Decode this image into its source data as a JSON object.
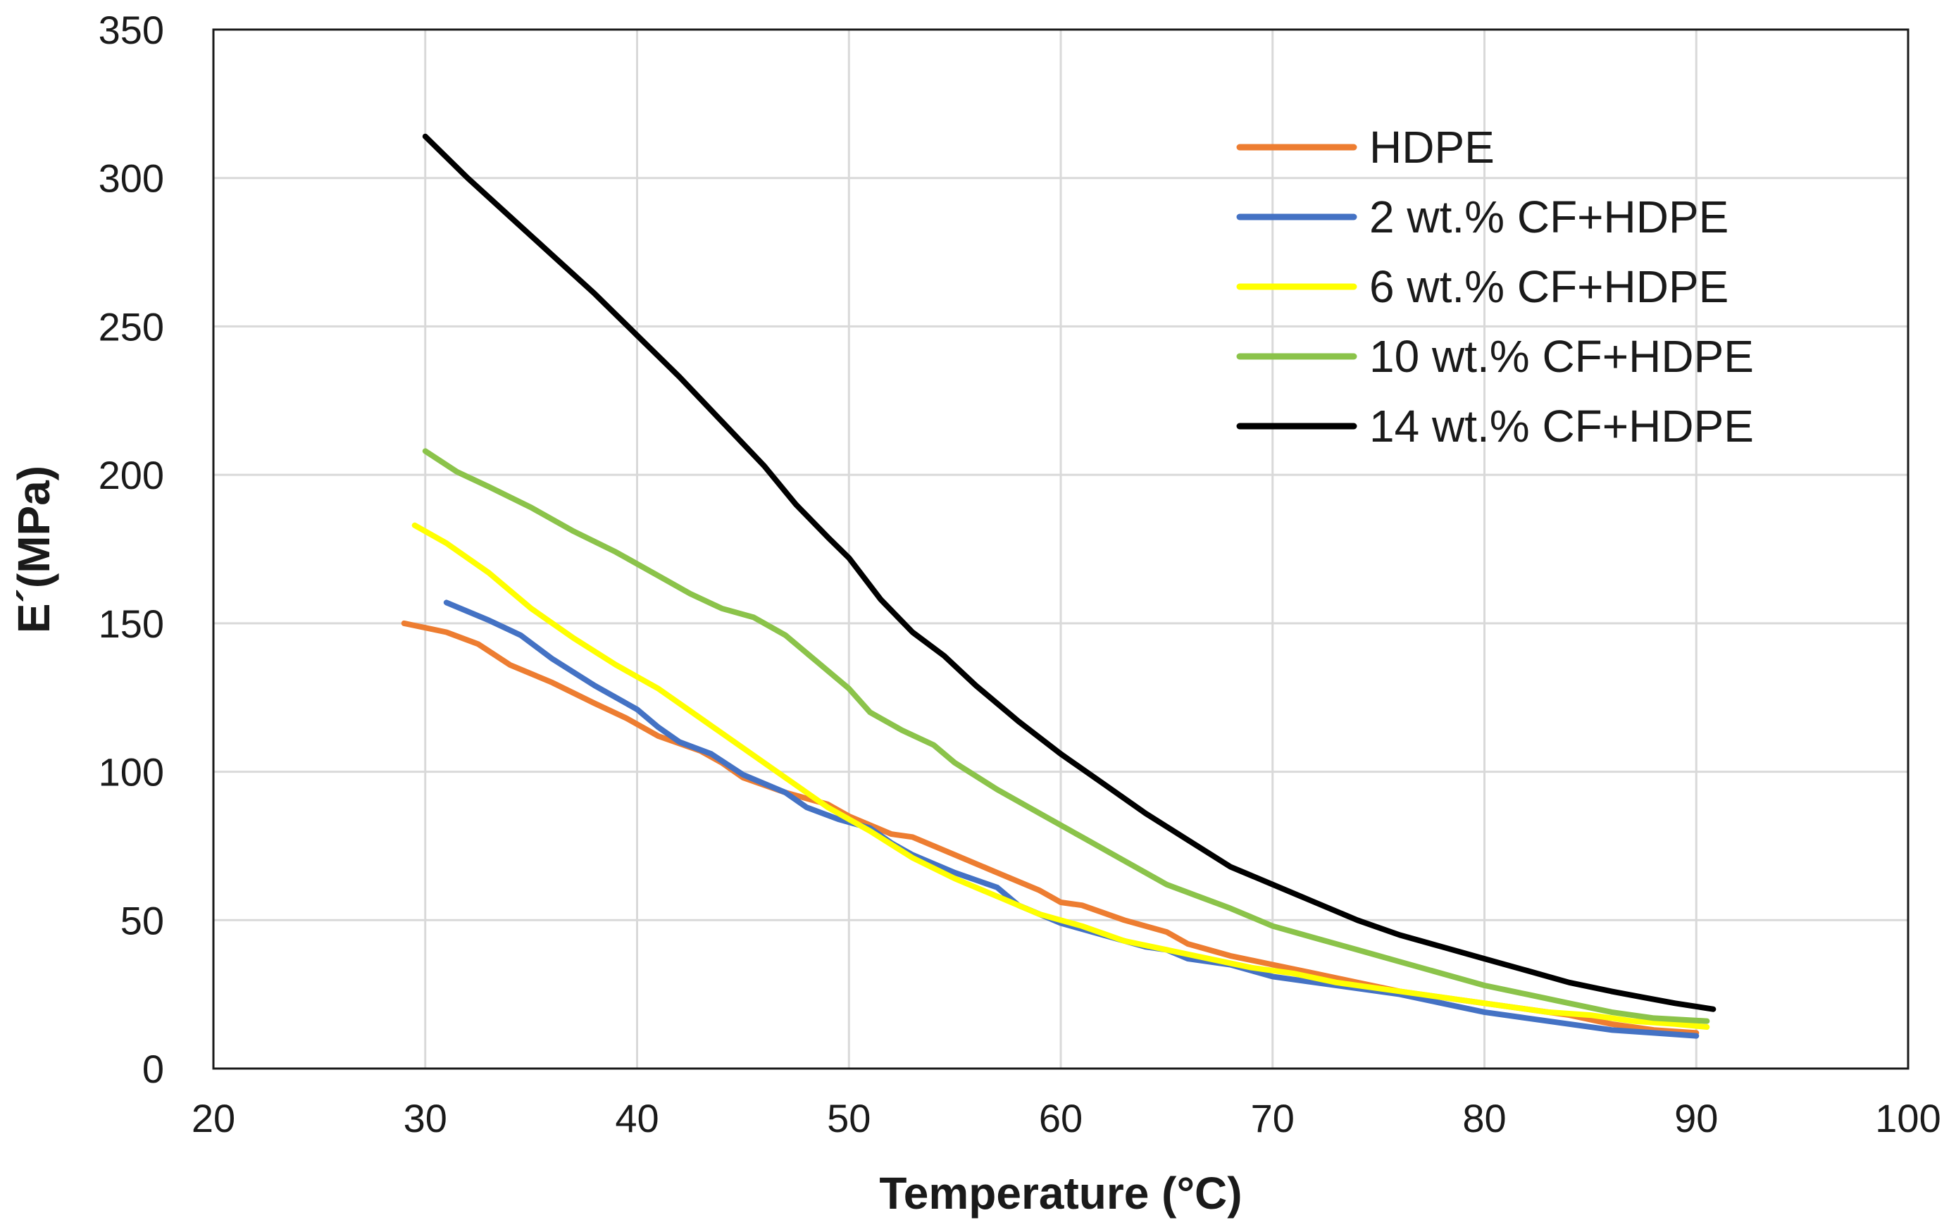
{
  "chart_data": {
    "type": "line",
    "title": "",
    "xlabel": "Temperature (°C)",
    "ylabel": "E´(MPa)",
    "xlim": [
      20,
      100
    ],
    "ylim": [
      0,
      350
    ],
    "x_ticks": [
      20,
      30,
      40,
      50,
      60,
      70,
      80,
      90,
      100
    ],
    "y_ticks": [
      0,
      50,
      100,
      150,
      200,
      250,
      300,
      350
    ],
    "grid": true,
    "legend_position": "top-right",
    "series": [
      {
        "name": "HDPE",
        "color": "#ED7D31",
        "x": [
          29,
          31,
          32.5,
          34,
          36,
          38,
          39.5,
          41,
          43,
          44,
          45,
          47,
          49,
          50,
          52,
          53,
          55,
          57,
          59,
          60,
          61,
          63,
          65,
          66,
          68,
          70,
          72,
          74,
          76,
          78,
          80,
          82,
          84,
          86,
          88,
          90
        ],
        "values": [
          150,
          147,
          143,
          136,
          130,
          123,
          118,
          112,
          107,
          103,
          98,
          93,
          89,
          85,
          79,
          78,
          72,
          66,
          60,
          56,
          55,
          50,
          46,
          42,
          38,
          35,
          32,
          29,
          26,
          24,
          22,
          20,
          18,
          15,
          13,
          12
        ]
      },
      {
        "name": "2 wt.% CF+HDPE",
        "color": "#4472C4",
        "x": [
          31,
          33,
          34.5,
          36,
          38,
          40,
          41,
          42,
          43.5,
          45,
          47,
          48,
          49.5,
          51,
          52,
          53,
          55,
          57,
          58,
          60,
          62,
          64,
          65,
          66,
          67,
          68,
          70,
          72,
          74,
          76,
          78,
          80,
          82,
          84,
          86,
          88,
          90
        ],
        "values": [
          157,
          151,
          146,
          138,
          129,
          121,
          115,
          110,
          106,
          99,
          93,
          88,
          84,
          81,
          76,
          72,
          66,
          61,
          55,
          49,
          45,
          41,
          40,
          37,
          36,
          35,
          31,
          29,
          27,
          25,
          22,
          19,
          17,
          15,
          13,
          12,
          11
        ]
      },
      {
        "name": "6 wt.% CF+HDPE",
        "color": "#FFFF00",
        "x": [
          29.5,
          31,
          33,
          35,
          37,
          39,
          41,
          43,
          45,
          47,
          49,
          51,
          53,
          55,
          57,
          59,
          61,
          63,
          65,
          67,
          69,
          71,
          73,
          75,
          77,
          79,
          81,
          83,
          85,
          87,
          89,
          90.5
        ],
        "values": [
          183,
          177,
          167,
          155,
          145,
          136,
          128,
          118,
          108,
          98,
          88,
          80,
          71,
          64,
          58,
          52,
          48,
          43,
          40,
          37,
          34,
          32,
          29,
          27,
          25,
          23,
          21,
          19,
          18,
          16,
          15,
          14
        ]
      },
      {
        "name": "10 wt.% CF+HDPE",
        "color": "#8BC34A",
        "x": [
          30,
          31.5,
          33,
          35,
          37,
          39,
          41,
          42.5,
          44,
          45.5,
          47,
          48.5,
          50,
          51,
          52.5,
          54,
          55,
          57,
          59,
          61,
          63,
          65,
          66.5,
          68,
          70,
          72,
          74,
          76,
          78,
          80,
          82,
          84,
          86,
          88,
          90.5
        ],
        "values": [
          208,
          201,
          196,
          189,
          181,
          174,
          166,
          160,
          155,
          152,
          146,
          137,
          128,
          120,
          114,
          109,
          103,
          94,
          86,
          78,
          70,
          62,
          58,
          54,
          48,
          44,
          40,
          36,
          32,
          28,
          25,
          22,
          19,
          17,
          16
        ]
      },
      {
        "name": "14 wt.% CF+HDPE",
        "color": "#000000",
        "x": [
          30,
          32,
          34,
          36,
          38,
          40,
          42,
          44,
          46,
          47.5,
          49,
          50,
          51.5,
          53,
          54.5,
          56,
          58,
          60,
          62,
          64,
          66,
          68,
          70,
          72,
          74,
          76,
          78,
          80,
          82,
          84,
          86,
          87.5,
          89,
          90.8
        ],
        "values": [
          314,
          300,
          287,
          274,
          261,
          247,
          233,
          218,
          203,
          190,
          179,
          172,
          158,
          147,
          139,
          129,
          117,
          106,
          96,
          86,
          77,
          68,
          62,
          56,
          50,
          45,
          41,
          37,
          33,
          29,
          26,
          24,
          22,
          20
        ]
      }
    ]
  }
}
